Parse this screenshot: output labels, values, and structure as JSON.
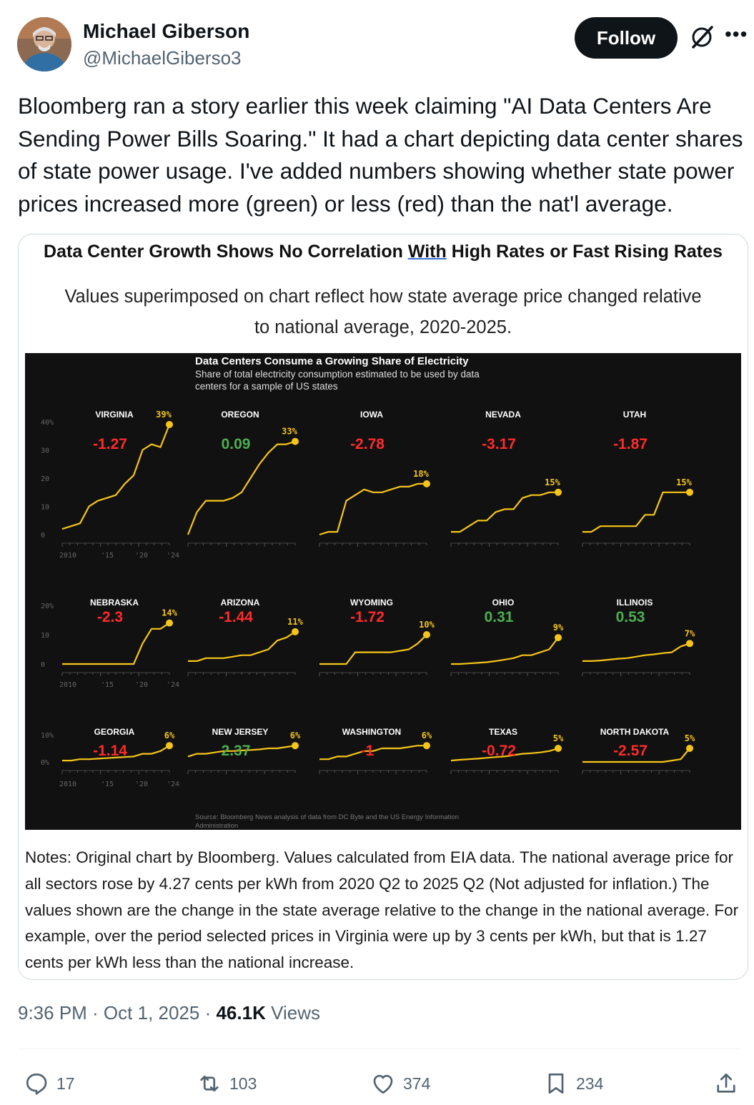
{
  "author": {
    "name": "Michael Giberson",
    "handle": "@MichaelGiberso3",
    "follow_label": "Follow",
    "more_icon": "more-icon",
    "grok_icon": "grok-icon"
  },
  "tweet": {
    "text": "Bloomberg ran a story earlier this week claiming \"AI Data Centers Are Sending Power Bills Soaring.\" It had a chart depicting data center shares of state power usage. I've added numbers showing whether state power prices increased more (green) or less (red) than the nat'l average."
  },
  "card": {
    "title_pre": "Data Center Growth Shows No Correlation ",
    "title_with": "With",
    "title_post": " High Rates or Fast Rising Rates",
    "subtitle": "Values superimposed on chart reflect how state average price changed relative to national average, 2020-2025.",
    "notes": "Notes: Original chart by Bloomberg. Values calculated from EIA data. The national average price for all sectors rose by 4.27 cents per kWh from 2020 Q2 to 2025 Q2 (Not adjusted for inflation.) The values shown are the change in the state average relative to the change in the national average. For example, over the period selected prices in Virginia were up by 3 cents per kWh, but that is 1.27 cents per kWh less than the national increase."
  },
  "chart_data": {
    "type": "line",
    "title": "Data Centers Consume a Growing Share of Electricity",
    "subtitle": "Share of total electricity consumption estimated to be used by data centers for a sample of US states",
    "source": "Source: Bloomberg News analysis of data from DC Byte and the US Energy Information Administration",
    "x_ticks": [
      "2010",
      "'15",
      "'20",
      "'24"
    ],
    "colors": {
      "line": "#f5c518",
      "positive": "#4caf50",
      "negative": "#ff2a2a",
      "background": "#111111"
    },
    "rows": [
      {
        "y_ticks": [
          "40%",
          "30",
          "20",
          "10",
          "0"
        ],
        "ylim": [
          0,
          40
        ]
      },
      {
        "y_ticks": [
          "20%",
          "10",
          "0"
        ],
        "ylim": [
          0,
          20
        ]
      },
      {
        "y_ticks": [
          "10%",
          "0%"
        ],
        "ylim": [
          0,
          10
        ]
      }
    ],
    "panels": [
      {
        "state": "VIRGINIA",
        "end_label": "39%",
        "end": 39,
        "price_delta": "-1.27",
        "sign": "neg",
        "row": 0,
        "col": 0,
        "values": [
          2,
          3,
          4,
          10,
          12,
          13,
          14,
          18,
          21,
          30,
          32,
          31,
          39
        ]
      },
      {
        "state": "OREGON",
        "end_label": "33%",
        "end": 33,
        "price_delta": "0.09",
        "sign": "pos",
        "row": 0,
        "col": 1,
        "values": [
          0,
          8,
          12,
          12,
          12,
          13,
          15,
          20,
          25,
          29,
          32,
          32,
          33
        ]
      },
      {
        "state": "IOWA",
        "end_label": "18%",
        "end": 18,
        "price_delta": "-2.78",
        "sign": "neg",
        "row": 0,
        "col": 2,
        "values": [
          0,
          1,
          1,
          12,
          14,
          16,
          15,
          15,
          16,
          17,
          17,
          18,
          18
        ]
      },
      {
        "state": "NEVADA",
        "end_label": "15%",
        "end": 15,
        "price_delta": "-3.17",
        "sign": "neg",
        "row": 0,
        "col": 3,
        "values": [
          1,
          1,
          3,
          5,
          5,
          8,
          9,
          9,
          13,
          14,
          14,
          15,
          15
        ]
      },
      {
        "state": "UTAH",
        "end_label": "15%",
        "end": 15,
        "price_delta": "-1.87",
        "sign": "neg",
        "row": 0,
        "col": 4,
        "values": [
          1,
          1,
          3,
          3,
          3,
          3,
          3,
          7,
          7,
          15,
          15,
          15,
          15
        ]
      },
      {
        "state": "NEBRASKA",
        "end_label": "14%",
        "end": 14,
        "price_delta": "-2.3",
        "sign": "neg",
        "row": 1,
        "col": 0,
        "values": [
          0,
          0,
          0,
          0,
          0,
          0,
          0,
          0,
          0,
          7,
          12,
          12,
          14
        ]
      },
      {
        "state": "ARIZONA",
        "end_label": "11%",
        "end": 11,
        "price_delta": "-1.44",
        "sign": "neg",
        "row": 1,
        "col": 1,
        "values": [
          1,
          1,
          2,
          2,
          2,
          2.5,
          3,
          3,
          4,
          5,
          8,
          9,
          11
        ]
      },
      {
        "state": "WYOMING",
        "end_label": "10%",
        "end": 10,
        "price_delta": "-1.72",
        "sign": "neg",
        "row": 1,
        "col": 2,
        "values": [
          0,
          0,
          0,
          0,
          4,
          4,
          4,
          4,
          4,
          4.5,
          5,
          7,
          10
        ]
      },
      {
        "state": "OHIO",
        "end_label": "9%",
        "end": 9,
        "price_delta": "0.31",
        "sign": "pos",
        "row": 1,
        "col": 3,
        "values": [
          0,
          0,
          0.2,
          0.4,
          0.6,
          1,
          1.5,
          2,
          3,
          3,
          4,
          5,
          9
        ]
      },
      {
        "state": "ILLINOIS",
        "end_label": "7%",
        "end": 7,
        "price_delta": "0.53",
        "sign": "pos",
        "row": 1,
        "col": 4,
        "values": [
          1,
          1,
          1.2,
          1.5,
          1.8,
          2,
          2.5,
          3,
          3.3,
          3.7,
          4,
          6,
          7
        ]
      },
      {
        "state": "GEORGIA",
        "end_label": "6%",
        "end": 6,
        "price_delta": "-1.14",
        "sign": "neg",
        "row": 2,
        "col": 0,
        "values": [
          0.5,
          0.5,
          1,
          1,
          1.2,
          1.4,
          1.6,
          1.8,
          2,
          3,
          3,
          4,
          6
        ]
      },
      {
        "state": "NEW JERSEY",
        "end_label": "6%",
        "end": 6,
        "price_delta": "2.37",
        "sign": "pos",
        "row": 2,
        "col": 1,
        "values": [
          2,
          3,
          3,
          3.5,
          4,
          4,
          4.2,
          4.4,
          4.6,
          5,
          5,
          5.5,
          6
        ]
      },
      {
        "state": "WASHINGTON",
        "end_label": "6%",
        "end": 6,
        "price_delta": "-1",
        "sign": "neg",
        "row": 2,
        "col": 2,
        "values": [
          1,
          1,
          2,
          2,
          3,
          4,
          4,
          5,
          5,
          5,
          5.5,
          6,
          6
        ]
      },
      {
        "state": "TEXAS",
        "end_label": "5%",
        "end": 5,
        "price_delta": "-0.72",
        "sign": "neg",
        "row": 2,
        "col": 3,
        "values": [
          0.5,
          0.8,
          1,
          1.2,
          1.5,
          1.8,
          2,
          2.5,
          3,
          3.2,
          3.5,
          4,
          5
        ]
      },
      {
        "state": "NORTH DAKOTA",
        "end_label": "5%",
        "end": 5,
        "price_delta": "-2.57",
        "sign": "neg",
        "row": 2,
        "col": 4,
        "values": [
          0,
          0,
          0,
          0,
          0,
          0,
          0,
          0,
          0,
          0,
          0.5,
          1,
          5
        ]
      }
    ]
  },
  "meta": {
    "time": "9:36 PM · Oct 1, 2025 · ",
    "views_count": "46.1K",
    "views_label": " Views"
  },
  "actions": {
    "replies": "17",
    "reposts": "103",
    "likes": "374",
    "bookmarks": "234"
  }
}
